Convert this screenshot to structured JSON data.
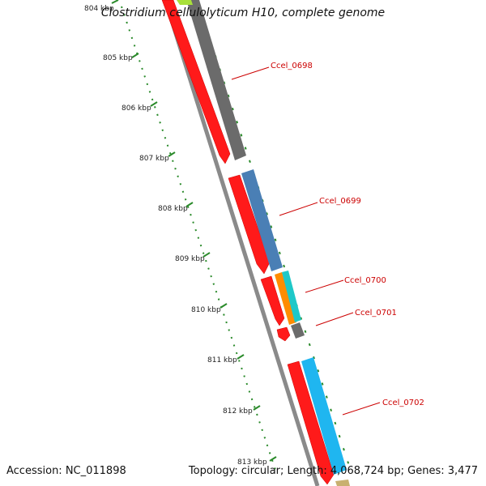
{
  "title": "Clostridium cellulolyticum H10, complete genome",
  "accession": "Accession: NC_011898",
  "summary": "Topology: circular; Length: 4,068,724 bp; Genes: 3,477",
  "ticks": [
    "804 kbp",
    "805 kbp",
    "806 kbp",
    "807 kbp",
    "808 kbp",
    "809 kbp",
    "810 kbp",
    "811 kbp",
    "812 kbp",
    "813 kbp"
  ],
  "genes": [
    {
      "label": "Ccel_0698",
      "cog_color": "#6b6b6b"
    },
    {
      "label": "Ccel_0699",
      "cog_color": "#4a7fb5"
    },
    {
      "label": "Ccel_0700",
      "cog_color": "#ff8c00"
    },
    {
      "label": "Ccel_0701",
      "cog_color": "#6b6b6b"
    },
    {
      "label": "Ccel_0702",
      "cog_color": "#1fb6f0"
    }
  ],
  "colors": {
    "forward_strand": "#ff0000",
    "backbone": "#8a8a8a",
    "ticks": "#2a8a2a",
    "label": "#cc0000"
  }
}
